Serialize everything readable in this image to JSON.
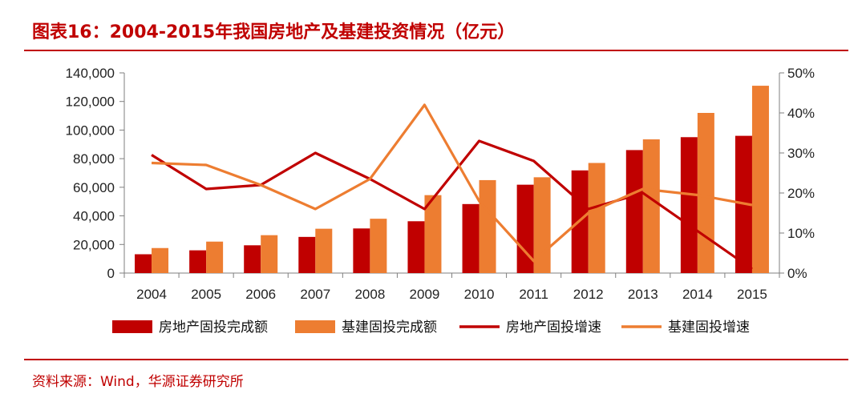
{
  "title": "图表16：2004-2015年我国房地产及基建投资情况（亿元）",
  "source": "资料来源：Wind，华源证券研究所",
  "colors": {
    "realestate": "#C00000",
    "infra": "#ED7D31",
    "accent": "#C00000"
  },
  "chart_data": {
    "type": "bar",
    "title": "图表16：2004-2015年我国房地产及基建投资情况（亿元）",
    "categories": [
      "2004",
      "2005",
      "2006",
      "2007",
      "2008",
      "2009",
      "2010",
      "2011",
      "2012",
      "2013",
      "2014",
      "2015"
    ],
    "ylim": [
      0,
      140000
    ],
    "y_ticks": [
      0,
      20000,
      40000,
      60000,
      80000,
      100000,
      120000,
      140000
    ],
    "y_tick_labels": [
      "0",
      "20,000",
      "40,000",
      "60,000",
      "80,000",
      "100,000",
      "120,000",
      "140,000"
    ],
    "y2lim": [
      0,
      50
    ],
    "y2_ticks": [
      0,
      10,
      20,
      30,
      40,
      50
    ],
    "y2_tick_labels": [
      "0%",
      "10%",
      "20%",
      "30%",
      "40%",
      "50%"
    ],
    "series": [
      {
        "name": "房地产固投完成额",
        "kind": "bar",
        "axis": "left",
        "color": "#C00000",
        "values": [
          13158,
          15909,
          19423,
          25289,
          31203,
          36242,
          48259,
          61797,
          71804,
          86013,
          95036,
          95979
        ]
      },
      {
        "name": "基建固投完成额",
        "kind": "bar",
        "axis": "left",
        "color": "#ED7D31",
        "values": [
          17500,
          22000,
          26500,
          31000,
          38000,
          54500,
          65000,
          67000,
          77000,
          93500,
          112000,
          131000
        ]
      },
      {
        "name": "房地产固投增速",
        "kind": "line",
        "axis": "right",
        "color": "#C00000",
        "values": [
          29.5,
          21.0,
          22.0,
          30.0,
          23.5,
          16.0,
          33.0,
          28.0,
          16.0,
          20.0,
          10.5,
          1.0
        ]
      },
      {
        "name": "基建固投增速",
        "kind": "line",
        "axis": "right",
        "color": "#ED7D31",
        "values": [
          27.5,
          27.0,
          22.0,
          16.0,
          23.5,
          42.0,
          18.0,
          3.0,
          15.0,
          21.0,
          19.5,
          17.0
        ]
      }
    ],
    "legend_position": "bottom"
  }
}
